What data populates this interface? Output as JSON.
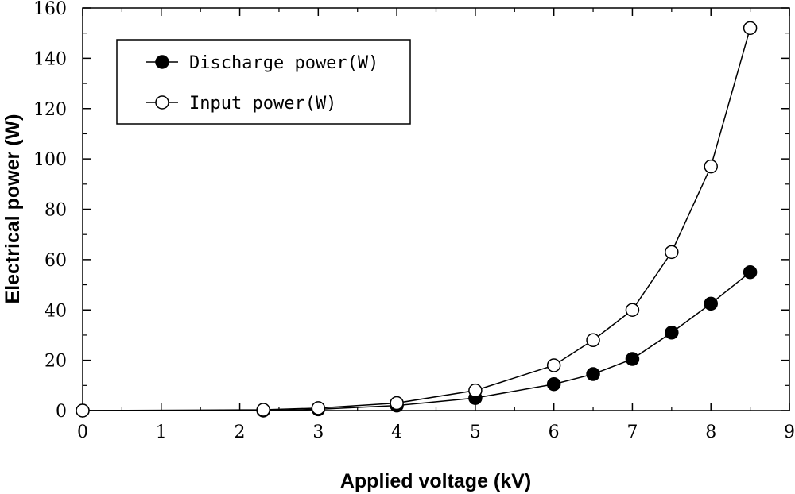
{
  "chart_data": {
    "type": "line",
    "title": "",
    "xlabel": "Applied voltage (kV)",
    "ylabel": "Electrical power (W)",
    "xlim": [
      0,
      9
    ],
    "ylim": [
      0,
      160
    ],
    "xticks": [
      0,
      1,
      2,
      3,
      4,
      5,
      6,
      7,
      8,
      9
    ],
    "yticks": [
      0,
      20,
      40,
      60,
      80,
      100,
      120,
      140,
      160
    ],
    "grid": false,
    "legend_position": "top-left",
    "series": [
      {
        "name": "Discharge power(W)",
        "marker": "filled-circle",
        "x": [
          0,
          2.3,
          3,
          4,
          5,
          6,
          6.5,
          7,
          7.5,
          8,
          8.5
        ],
        "values": [
          0,
          0,
          0.5,
          2,
          5,
          10.5,
          14.5,
          20.5,
          31,
          42.5,
          55
        ]
      },
      {
        "name": "Input power(W)",
        "marker": "open-circle",
        "x": [
          0,
          2.3,
          3,
          4,
          5,
          6,
          6.5,
          7,
          7.5,
          8,
          8.5
        ],
        "values": [
          0,
          0.3,
          1,
          3,
          8,
          18,
          28,
          40,
          63,
          97,
          152
        ]
      }
    ]
  }
}
